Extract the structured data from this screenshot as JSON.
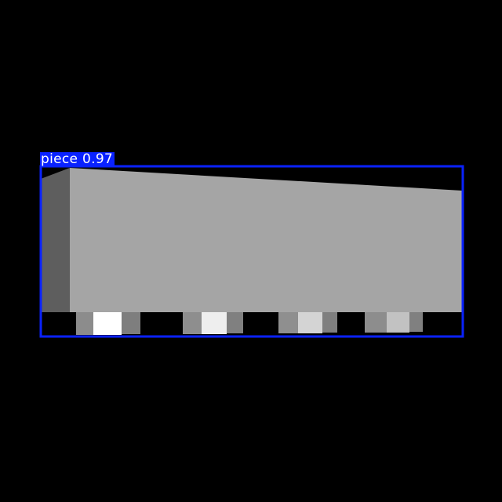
{
  "detection": {
    "class_name": "piece",
    "confidence": "0.97",
    "box_color": "#0a22ff",
    "label_text_color": "#ffffff"
  },
  "scene": {
    "background_color": "#000000",
    "block_front_color": "#a5a5a5",
    "block_side_color": "#5e5e5e",
    "stud_shades": [
      "#ffffff",
      "#eeeeee",
      "#d4d4d4",
      "#c2c2c2"
    ]
  }
}
